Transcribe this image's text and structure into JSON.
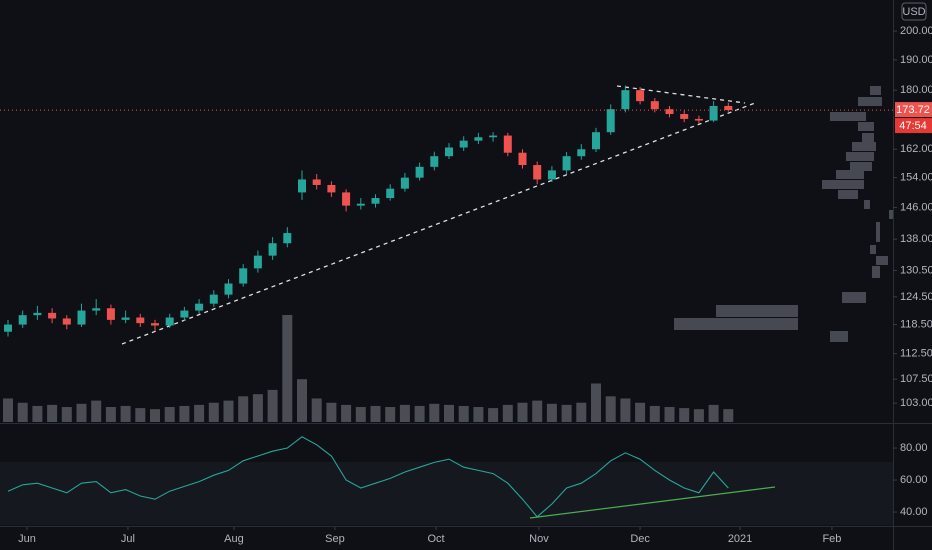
{
  "chart_data": {
    "type": "candlestick",
    "currency": "USD",
    "countdown": "47:54",
    "log_scale": true,
    "grid": false,
    "up_color": "#26a69a",
    "down_color": "#ef5350",
    "xlim": [
      -0.544,
      60.34
    ],
    "xticks": [
      {
        "value": 1.29,
        "label": "Jun"
      },
      {
        "value": 8.16,
        "label": "Jul"
      },
      {
        "value": 15.37,
        "label": "Aug"
      },
      {
        "value": 22.24,
        "label": "Sep"
      },
      {
        "value": 29.12,
        "label": "Oct"
      },
      {
        "value": 36.12,
        "label": "Nov"
      },
      {
        "value": 43.0,
        "label": "Dec"
      },
      {
        "value": 49.8,
        "label": "2021"
      },
      {
        "value": 56.05,
        "label": "Feb"
      }
    ],
    "ylim": [
      99.6,
      211.4
    ],
    "yticks": [
      {
        "value": 200,
        "label": "200.00"
      },
      {
        "value": 190,
        "label": "190.00"
      },
      {
        "value": 180,
        "label": "180.00"
      },
      {
        "value": 162,
        "label": "162.00"
      },
      {
        "value": 154,
        "label": "154.00"
      },
      {
        "value": 146,
        "label": "146.00"
      },
      {
        "value": 138,
        "label": "138.00"
      },
      {
        "value": 130.5,
        "label": "130.50"
      },
      {
        "value": 124.5,
        "label": "124.50"
      },
      {
        "value": 118.5,
        "label": "118.50"
      },
      {
        "value": 112.5,
        "label": "112.50"
      },
      {
        "value": 107.5,
        "label": "107.50"
      },
      {
        "value": 103,
        "label": "103.00"
      }
    ],
    "open": [
      117,
      118.5,
      120.5,
      121,
      119.8,
      118.5,
      121.5,
      122,
      119.5,
      120,
      118.8,
      118.3,
      120,
      121.5,
      123,
      125,
      127.5,
      131,
      134,
      137,
      150,
      153.5,
      152,
      150,
      146.5,
      147,
      148.5,
      151,
      154,
      157,
      160,
      162.5,
      164.5,
      165.5,
      166,
      161,
      157.5,
      153.5,
      156,
      160,
      162,
      167,
      174,
      180,
      176.5,
      174,
      172.5,
      171,
      170.5,
      175
    ],
    "high": [
      119.5,
      121.5,
      122.5,
      122,
      120.5,
      123,
      124,
      122.8,
      121.5,
      120.8,
      119.5,
      120.8,
      122.3,
      124,
      126,
      128.5,
      132,
      135.2,
      138.5,
      141,
      156,
      155,
      153,
      150.8,
      148.5,
      149.5,
      152.2,
      155.3,
      158.2,
      161.3,
      163.8,
      165.8,
      166.8,
      167,
      166.8,
      162,
      158.5,
      157.2,
      161.2,
      163.5,
      168.3,
      175.5,
      181.5,
      181,
      177.5,
      175,
      173.5,
      172,
      176.5,
      176
    ],
    "low": [
      116,
      117.8,
      119.5,
      118.8,
      117.5,
      118,
      120.5,
      118.5,
      118.8,
      118,
      117.2,
      117.8,
      119.3,
      120.8,
      122.3,
      124.2,
      126.8,
      130,
      133,
      136,
      148,
      150.8,
      148.8,
      145,
      145.5,
      146,
      147.8,
      150.2,
      153.2,
      156,
      159.2,
      161.5,
      163.5,
      164.2,
      160,
      156.5,
      152.2,
      152.8,
      155,
      159,
      161.2,
      166.2,
      173,
      175.5,
      173,
      171.5,
      170,
      169.5,
      170,
      173.2
    ],
    "close": [
      118.5,
      120.5,
      121,
      119.8,
      118.5,
      121.5,
      122,
      119.5,
      120,
      118.8,
      118.3,
      120,
      121.5,
      123,
      125,
      127.5,
      131,
      134,
      137,
      139.5,
      153.5,
      152,
      150,
      146.5,
      147,
      148.5,
      151,
      154,
      157,
      160,
      162.5,
      164.5,
      165.5,
      166,
      161,
      157.5,
      153.5,
      156,
      160,
      162,
      167,
      174,
      180,
      176.5,
      174,
      172.5,
      171,
      170.5,
      175,
      173.72
    ],
    "volume": [
      22,
      18,
      15,
      16,
      14,
      17,
      20,
      14,
      15,
      13,
      12,
      14,
      15,
      16,
      18,
      20,
      24,
      26,
      30,
      100,
      40,
      22,
      18,
      16,
      14,
      15,
      14,
      16,
      15,
      17,
      16,
      15,
      14,
      13,
      16,
      18,
      20,
      17,
      16,
      18,
      36,
      24,
      22,
      18,
      15,
      14,
      13,
      12,
      16,
      12
    ],
    "rsi": {
      "ylim": [
        31.9,
        94.4
      ],
      "yticks": [
        {
          "value": 80,
          "label": "80.00"
        },
        {
          "value": 60,
          "label": "60.00"
        },
        {
          "value": 40,
          "label": "40.00"
        }
      ],
      "color": "#26a69a",
      "values": [
        53,
        57,
        58,
        55,
        52,
        58,
        59,
        52,
        54,
        50,
        48,
        53,
        56,
        59,
        63,
        66,
        72,
        75,
        78,
        80,
        87,
        82,
        75,
        60,
        55,
        58,
        61,
        65,
        68,
        71,
        73,
        68,
        66,
        64,
        58,
        48,
        37,
        45,
        55,
        58,
        64,
        72,
        77,
        73,
        66,
        60,
        55,
        52,
        65,
        55
      ]
    }
  }
}
